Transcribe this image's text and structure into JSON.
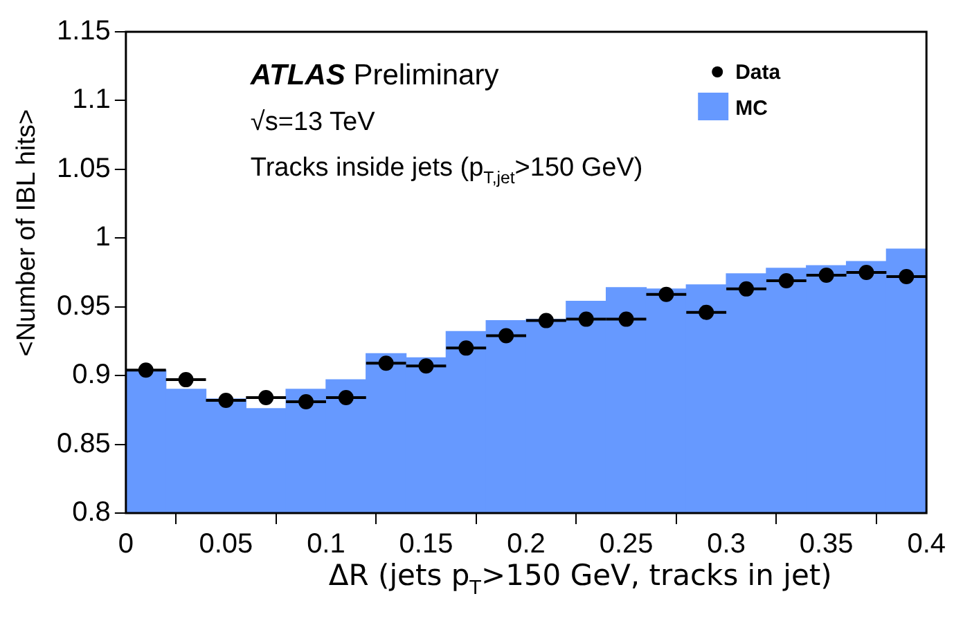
{
  "chart_data": {
    "type": "histogram",
    "xlabel": "ΔR (jets p$_{T}$>150 GeV, tracks in jet)",
    "ylabel": "<Number of IBL hits>",
    "annotations": [
      "ATLAS Preliminary",
      "√s=13 TeV",
      "Tracks inside jets (p$_{T,jet}$>150 GeV)"
    ],
    "bins": [
      0,
      0.02,
      0.04,
      0.06,
      0.08,
      0.1,
      0.12,
      0.14,
      0.16,
      0.18,
      0.2,
      0.22,
      0.24,
      0.26,
      0.28,
      0.3,
      0.32,
      0.34,
      0.36,
      0.38,
      0.4
    ],
    "series": [
      {
        "name": "MC",
        "color": "#6699ff",
        "values": [
          0.904,
          0.89,
          0.883,
          0.876,
          0.89,
          0.897,
          0.916,
          0.913,
          0.932,
          0.94,
          0.941,
          0.954,
          0.964,
          0.963,
          0.966,
          0.974,
          0.978,
          0.98,
          0.983,
          0.992
        ]
      },
      {
        "name": "Data",
        "type": "scatter",
        "color": "#000000",
        "marker": "circle",
        "x": [
          0.01,
          0.03,
          0.05,
          0.07,
          0.09,
          0.11,
          0.13,
          0.15,
          0.17,
          0.19,
          0.21,
          0.23,
          0.25,
          0.27,
          0.29,
          0.31,
          0.33,
          0.35,
          0.37,
          0.39
        ],
        "values": [
          0.904,
          0.897,
          0.882,
          0.884,
          0.881,
          0.884,
          0.909,
          0.907,
          0.92,
          0.929,
          0.94,
          0.941,
          0.941,
          0.959,
          0.946,
          0.963,
          0.969,
          0.973,
          0.975,
          0.972
        ],
        "errors": [
          0.001,
          0.001,
          0.001,
          0.001,
          0.002,
          0.002,
          0.002,
          0.003,
          0.003,
          0.003,
          0.003,
          0.003,
          0.003,
          0.003,
          0.003,
          0.003,
          0.004,
          0.004,
          0.004,
          0.004
        ],
        "xerrors": [
          0.01,
          0.01,
          0.01,
          0.01,
          0.01,
          0.01,
          0.01,
          0.01,
          0.01,
          0.01,
          0.01,
          0.01,
          0.01,
          0.01,
          0.01,
          0.01,
          0.01,
          0.01,
          0.01,
          0.01
        ]
      }
    ],
    "xlim": [
      0,
      0.4
    ],
    "xticks": [
      0,
      0.05,
      0.1,
      0.15,
      0.2,
      0.25,
      0.3,
      0.35,
      0.4
    ],
    "ylim": [
      0.8,
      1.15
    ],
    "yticks": [
      0.8,
      0.85,
      0.9,
      0.95,
      1,
      1.05,
      1.1,
      1.15
    ],
    "grid": false,
    "legend": "top right"
  }
}
